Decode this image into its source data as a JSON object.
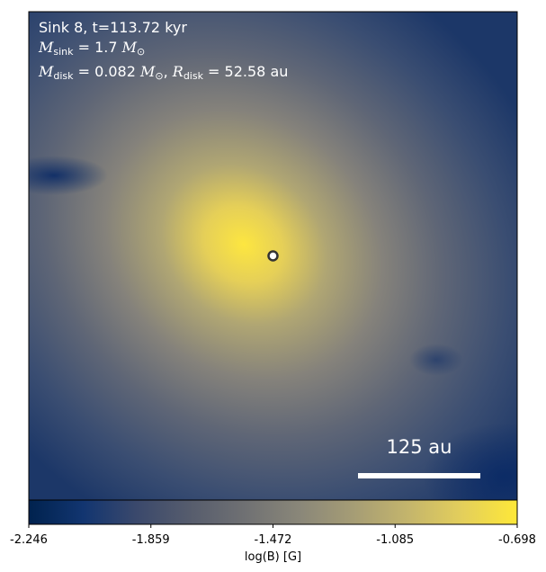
{
  "chart_data": {
    "type": "heatmap",
    "annotations": [
      [
        {
          "text": "Sink 8, t=113.72 kyr"
        }
      ],
      [
        {
          "text": "M",
          "style": "italic"
        },
        {
          "text": "sink",
          "style": "sub"
        },
        {
          "text": " = 1.7 "
        },
        {
          "text": "M",
          "style": "italic"
        },
        {
          "text": "⊙",
          "style": "sub"
        }
      ],
      [
        {
          "text": "M",
          "style": "italic"
        },
        {
          "text": "disk",
          "style": "sub"
        },
        {
          "text": " = 0.082 "
        },
        {
          "text": "M",
          "style": "italic"
        },
        {
          "text": "⊙",
          "style": "sub"
        },
        {
          "text": ", "
        },
        {
          "text": "R",
          "style": "italic"
        },
        {
          "text": "disk",
          "style": "sub"
        },
        {
          "text": " = 52.58 au"
        }
      ]
    ],
    "scale_bar_label": "125 au",
    "colormap": "cividis",
    "colorbar_label": "log(B) [G]",
    "clim": [
      -2.246,
      -0.698
    ],
    "cticks": [
      -2.246,
      -1.859,
      -1.472,
      -1.085,
      -0.698
    ]
  }
}
